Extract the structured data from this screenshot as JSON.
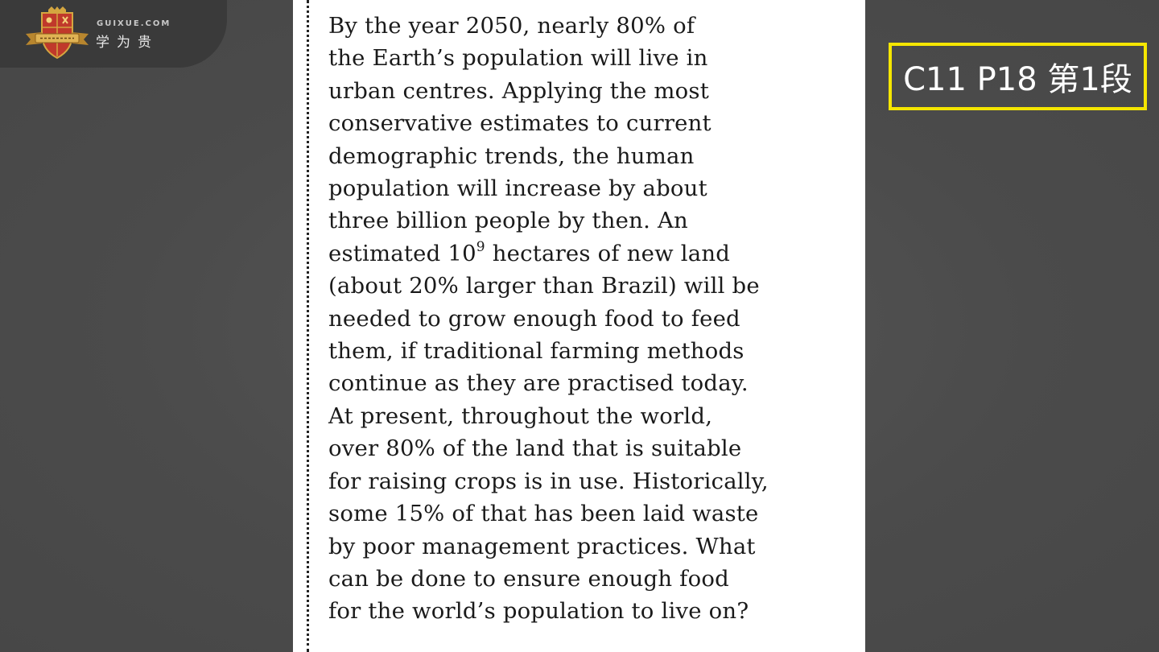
{
  "logo": {
    "domain": "GUIXUE.COM",
    "name_cn": "学为贵"
  },
  "reference": {
    "label": "C11 P18 第1段"
  },
  "passage": {
    "lines": [
      "By the year 2050, nearly 80% of",
      "the Earth’s population will live in",
      "urban centres. Applying the most",
      "conservative estimates to current",
      "demographic trends, the human",
      "population will increase by about",
      "three billion people by then. An",
      {
        "before": "estimated 10",
        "sup": "9",
        "after": " hectares of new land"
      },
      "(about 20% larger than Brazil) will be",
      "needed to grow enough food to feed",
      "them, if traditional farming methods",
      "continue as they are practised today.",
      "At present, throughout the world,",
      "over 80% of the land that is suitable",
      "for raising crops is in use. Historically,",
      "some 15% of that has been laid waste",
      "by poor management practices. What",
      "can be done to ensure enough food",
      "for the world’s population to live on?"
    ]
  },
  "colors": {
    "background": "#4b4b4b",
    "page": "#ffffff",
    "reference_border": "#f5e600",
    "logo_red": "#c0392b",
    "logo_gold": "#d4a640"
  }
}
